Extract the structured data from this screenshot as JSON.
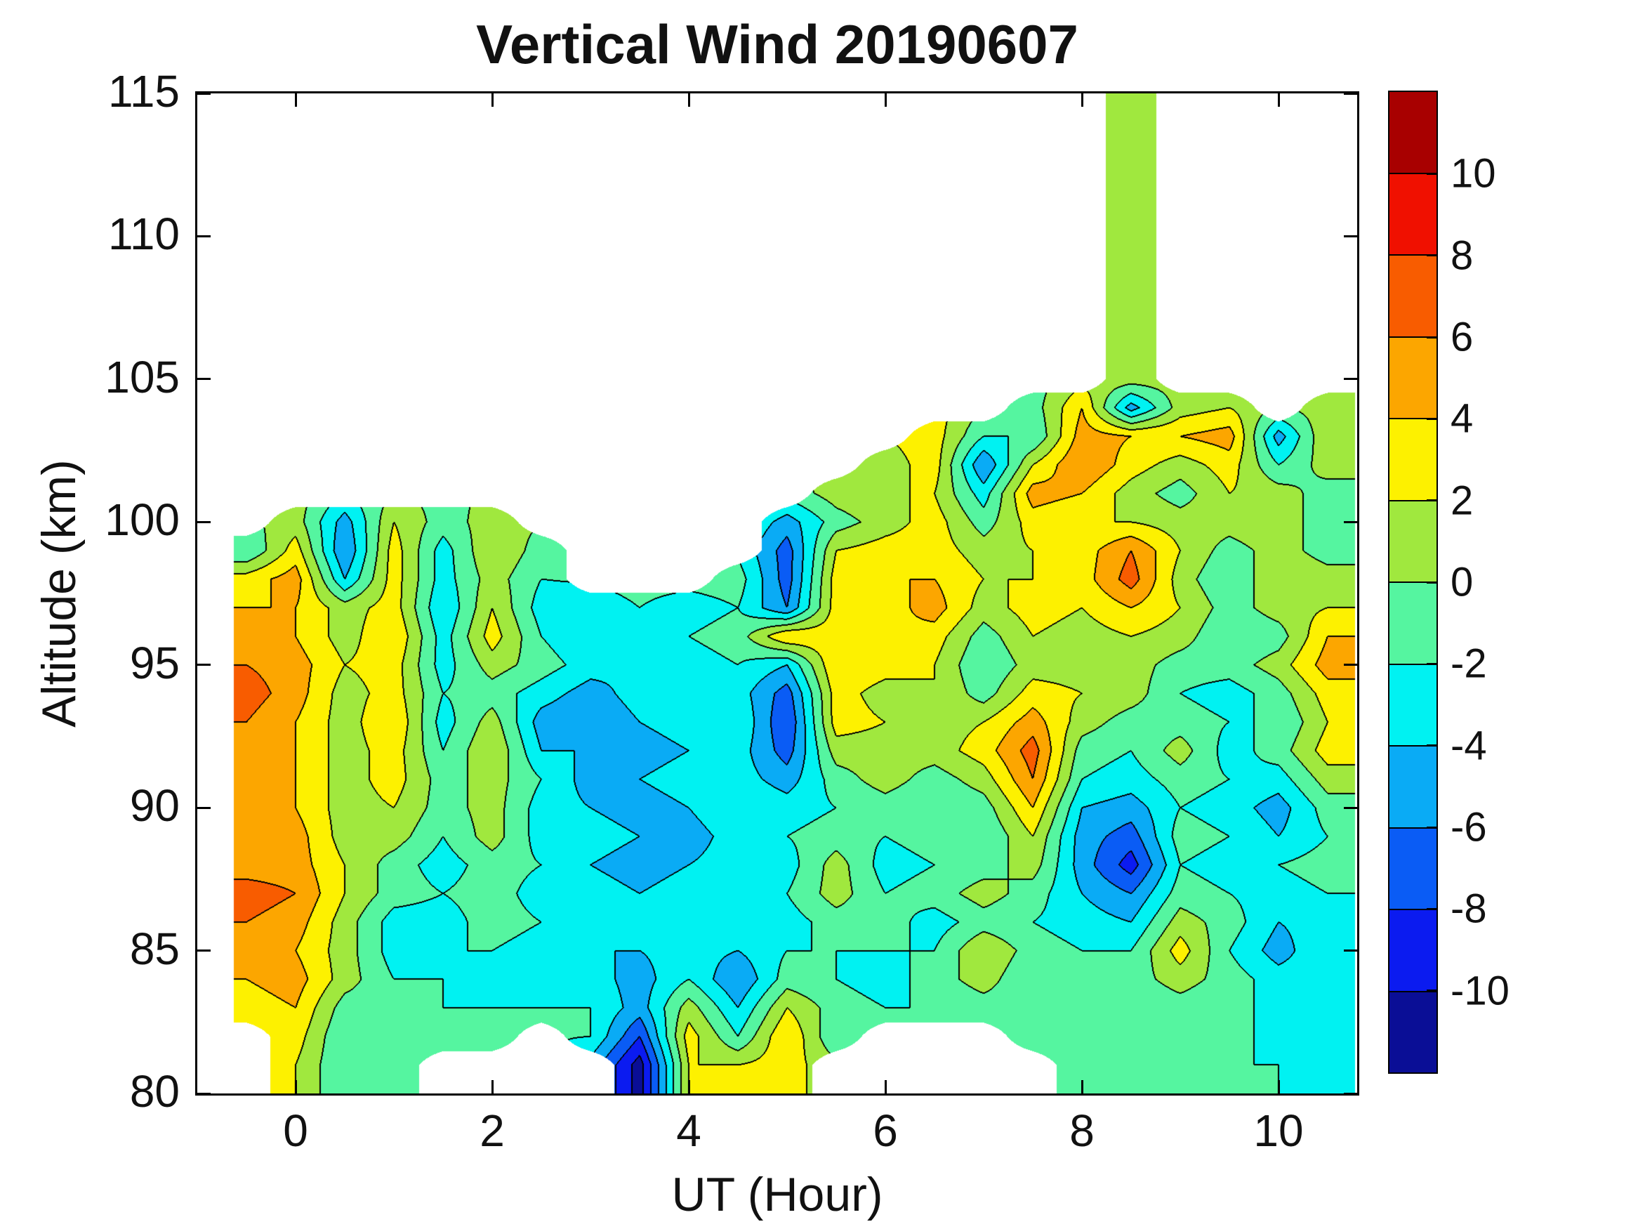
{
  "title": "Vertical Wind 20190607",
  "axes": {
    "x_label": "UT (Hour)",
    "y_label": "Altitude (km)",
    "x_tick_labels": [
      "0",
      "2",
      "4",
      "6",
      "8",
      "10"
    ],
    "x_tick_values": [
      0,
      2,
      4,
      6,
      8,
      10
    ],
    "y_tick_labels": [
      "80",
      "85",
      "90",
      "95",
      "100",
      "105",
      "110",
      "115"
    ],
    "y_tick_values": [
      80,
      85,
      90,
      95,
      100,
      105,
      110,
      115
    ],
    "xlim": [
      -1,
      10.8
    ],
    "ylim": [
      80,
      115
    ]
  },
  "colorbar": {
    "tick_labels": [
      "10",
      "8",
      "6",
      "4",
      "2",
      "0",
      "-2",
      "-4",
      "-6",
      "-8",
      "-10"
    ],
    "tick_values": [
      10,
      8,
      6,
      4,
      2,
      0,
      -2,
      -4,
      -6,
      -8,
      -10
    ]
  },
  "chart_data": {
    "type": "contour",
    "title": "Vertical Wind 20190607",
    "xlabel": "UT (Hour)",
    "ylabel": "Altitude (km)",
    "xlim": [
      -1,
      10.8
    ],
    "ylim": [
      80,
      115
    ],
    "legend_position": "right-colorbar",
    "grid": false,
    "levels": [
      -12,
      -10,
      -8,
      -6,
      -4,
      -2,
      0,
      2,
      4,
      6,
      8,
      10,
      12
    ],
    "colors": [
      "#0a0e96",
      "#0b1bf0",
      "#0a5cf5",
      "#0aabf5",
      "#00f2f2",
      "#55f5a0",
      "#a0e83e",
      "#fdf100",
      "#fca600",
      "#f85c00",
      "#f01000",
      "#a80000"
    ],
    "x": [
      -0.5,
      0,
      0.5,
      1,
      1.5,
      2,
      2.5,
      3,
      3.5,
      4,
      4.5,
      5,
      5.5,
      6,
      6.5,
      7,
      7.5,
      8,
      8.5,
      9,
      9.5,
      10,
      10.5
    ],
    "y": [
      105,
      104,
      103,
      102,
      101,
      100,
      99,
      98,
      97,
      96,
      95,
      94,
      93,
      92,
      91,
      90,
      89,
      88,
      87,
      86,
      85,
      84,
      83,
      82,
      81
    ],
    "values": [
      [
        null,
        null,
        null,
        null,
        null,
        null,
        null,
        null,
        null,
        null,
        null,
        null,
        null,
        null,
        null,
        null,
        null,
        null,
        1,
        null,
        null,
        null,
        null
      ],
      [
        null,
        null,
        null,
        null,
        null,
        null,
        null,
        null,
        null,
        null,
        null,
        null,
        null,
        null,
        null,
        null,
        -1,
        4,
        -5,
        1,
        2,
        null,
        1
      ],
      [
        null,
        null,
        null,
        null,
        null,
        null,
        null,
        null,
        null,
        null,
        null,
        null,
        null,
        null,
        3,
        -2,
        -2,
        5,
        4,
        4,
        5,
        -5,
        2
      ],
      [
        null,
        null,
        null,
        null,
        null,
        null,
        null,
        null,
        null,
        null,
        null,
        null,
        null,
        1,
        3,
        -6,
        2,
        6,
        3,
        1,
        3,
        -2,
        1
      ],
      [
        null,
        null,
        null,
        null,
        null,
        null,
        null,
        null,
        null,
        null,
        null,
        null,
        1,
        2,
        2,
        -3,
        5,
        4,
        1,
        -1,
        2,
        1,
        -1
      ],
      [
        null,
        1,
        -5,
        2,
        -1,
        1,
        null,
        null,
        null,
        null,
        null,
        -5,
        -1,
        1,
        3,
        -1,
        3,
        2,
        2,
        1,
        1,
        2,
        -2
      ],
      [
        -2,
        3,
        -6,
        3,
        -3,
        2,
        -1,
        null,
        null,
        null,
        null,
        -7,
        2,
        3,
        3,
        1,
        2,
        3,
        6,
        2,
        -1,
        1,
        -1
      ],
      [
        3,
        5,
        -4,
        3,
        -3,
        1,
        -2,
        null,
        null,
        null,
        -1,
        -7,
        3,
        4,
        4,
        2,
        2,
        3,
        7,
        1,
        -2,
        2,
        1
      ],
      [
        4,
        4,
        1,
        3,
        -4,
        2,
        -3,
        -3,
        -2,
        -3,
        -2,
        -6,
        3,
        3,
        5,
        1,
        3,
        2,
        4,
        2,
        -1,
        1,
        2
      ],
      [
        5,
        4,
        1,
        4,
        -3,
        3,
        -2,
        -4,
        -3,
        -2,
        -1,
        4,
        3,
        4,
        3,
        -1,
        2,
        1,
        2,
        1,
        -2,
        -1,
        4
      ],
      [
        6,
        5,
        2,
        3,
        -3,
        1,
        -1,
        -3,
        -4,
        -3,
        -2,
        -4,
        4,
        3,
        2,
        -2,
        1,
        1,
        1,
        -1,
        -1,
        1,
        5
      ],
      [
        7,
        5,
        1,
        3,
        -2,
        -1,
        -3,
        -5,
        -3,
        -2,
        -3,
        -7,
        3,
        1,
        2,
        -1,
        3,
        2,
        1,
        -2,
        -3,
        -1,
        3
      ],
      [
        6,
        4,
        1,
        4,
        -3,
        1,
        -5,
        -6,
        -4,
        -3,
        -2,
        -8,
        3,
        2,
        1,
        2,
        5,
        1,
        -1,
        -1,
        -2,
        -2,
        2
      ],
      [
        4,
        4,
        1,
        3,
        -2,
        2,
        -4,
        -4,
        -5,
        -4,
        -3,
        -7,
        1,
        1,
        1,
        3,
        7,
        -1,
        -2,
        1,
        -3,
        -1,
        3
      ],
      [
        5,
        4,
        1,
        3,
        -1,
        1,
        -2,
        -5,
        -4,
        -3,
        -3,
        -5,
        -1,
        1,
        -1,
        1,
        6,
        -2,
        -3,
        -1,
        -2,
        -3,
        1
      ],
      [
        5,
        4,
        1,
        2,
        -1,
        1,
        -3,
        -4,
        -5,
        -4,
        -2,
        -3,
        -2,
        -1,
        -2,
        -1,
        4,
        -4,
        -5,
        -2,
        -3,
        -5,
        -1
      ],
      [
        4,
        5,
        1,
        1,
        -2,
        1,
        -3,
        -3,
        -4,
        -5,
        -3,
        -2,
        -1,
        -2,
        -1,
        -2,
        2,
        -5,
        -7,
        -1,
        -2,
        -4,
        -2
      ],
      [
        5,
        5,
        2,
        -1,
        -3,
        -1,
        -2,
        -4,
        -5,
        -4,
        -3,
        -3,
        1,
        -3,
        -2,
        -1,
        1,
        -5,
        -9,
        -2,
        -3,
        -2,
        -1
      ],
      [
        7,
        6,
        2,
        -1,
        -2,
        -1,
        -3,
        -3,
        -4,
        -3,
        -2,
        -2,
        1,
        -2,
        -1,
        1,
        -1,
        -4,
        -6,
        -1,
        -2,
        -3,
        -2
      ],
      [
        6,
        5,
        1,
        -3,
        -3,
        -1,
        -2,
        -3,
        -3,
        -4,
        -3,
        -3,
        -1,
        -1,
        -3,
        -1,
        -2,
        -3,
        -4,
        1,
        -1,
        -4,
        -3
      ],
      [
        5,
        4,
        1,
        -3,
        -2,
        -2,
        -3,
        -4,
        -4,
        -3,
        -4,
        -2,
        -2,
        -2,
        -2,
        2,
        -1,
        -2,
        -2,
        3,
        -2,
        -5,
        -2
      ],
      [
        4,
        5,
        1,
        -2,
        -2,
        -3,
        -2,
        -3,
        -5,
        -2,
        -6,
        -1,
        -2,
        -3,
        -1,
        1,
        -2,
        -2,
        -1,
        1,
        -1,
        -3,
        -3
      ],
      [
        3,
        4,
        -1,
        -1,
        -2,
        -2,
        -2,
        -2,
        -5,
        1,
        -4,
        2,
        -1,
        -2,
        -2,
        -1,
        -1,
        -1,
        -2,
        -1,
        -2,
        -2,
        -2
      ],
      [
        null,
        3,
        -2,
        -1,
        -1,
        -1,
        null,
        -2,
        -8,
        3,
        -2,
        4,
        -2,
        null,
        null,
        null,
        -2,
        -2,
        -1,
        -2,
        -1,
        -3,
        -3
      ],
      [
        null,
        2,
        -2,
        -1,
        null,
        null,
        null,
        null,
        -11,
        2,
        2,
        3,
        null,
        null,
        null,
        null,
        null,
        -1,
        -2,
        -1,
        -2,
        -2,
        -3
      ]
    ]
  }
}
